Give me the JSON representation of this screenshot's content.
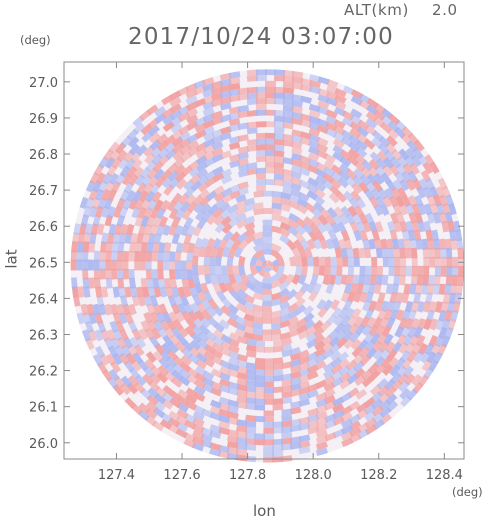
{
  "header": {
    "title": "2017/10/24 03:07:00",
    "altitude_label": "ALT(km)",
    "altitude_value": "2.0"
  },
  "colors": {
    "positive": "#f2a0a0",
    "negative": "#a8b4f0",
    "axis": "#888888",
    "text": "#5a5a5a"
  },
  "chart_data": {
    "type": "heatmap",
    "title": "2017/10/24 03:07:00",
    "xlabel": "lon",
    "ylabel": "lat",
    "x_unit": "(deg)",
    "y_unit": "(deg)",
    "xlim": [
      127.24,
      128.46
    ],
    "ylim": [
      25.955,
      27.055
    ],
    "x_ticks": [
      "127.4",
      "127.6",
      "127.8",
      "128.0",
      "128.2",
      "128.4"
    ],
    "y_ticks": [
      "26.0",
      "26.1",
      "26.2",
      "26.3",
      "26.4",
      "26.5",
      "26.6",
      "26.7",
      "26.8",
      "26.9",
      "27.0"
    ],
    "center": {
      "lon": 127.86,
      "lat": 26.49
    },
    "radius_deg_lon": 0.6,
    "radius_deg_lat": 0.545,
    "grid": false,
    "colormap": "diverging red-white-blue (polar radar field, no colorbar)"
  }
}
